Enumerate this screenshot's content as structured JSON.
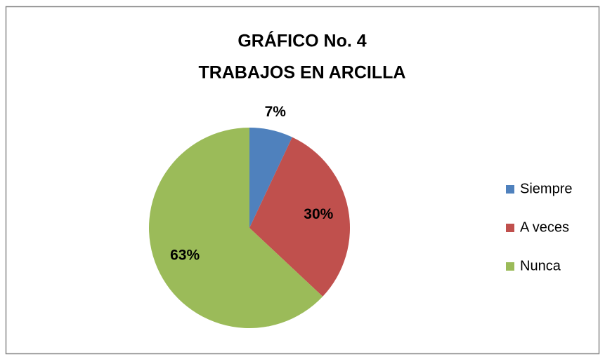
{
  "chart_data": {
    "type": "pie",
    "title": [
      "GRÁFICO No. 4",
      "TRABAJOS EN ARCILLA"
    ],
    "categories": [
      "Siempre",
      "A veces",
      "Nunca"
    ],
    "values": [
      7,
      30,
      63
    ],
    "value_labels": [
      "7%",
      "30%",
      "63%"
    ],
    "colors": [
      "#4f81bd",
      "#c0504d",
      "#9bbb59"
    ],
    "legend": "right"
  }
}
